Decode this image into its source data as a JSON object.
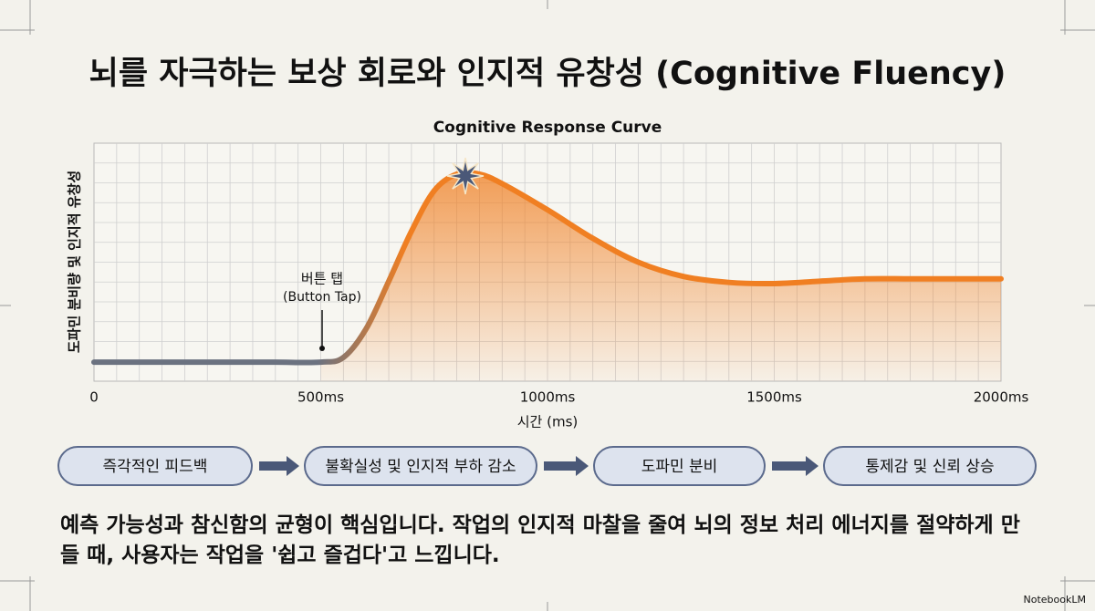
{
  "title": "뇌를 자극하는 보상 회로와 인지적 유창성 (Cognitive Fluency)",
  "chart_data": {
    "type": "line",
    "title": "Cognitive Response Curve",
    "x_label": "시간 (ms)",
    "y_label": "도파민 분비량 및 인지적 유창성",
    "x": [
      0,
      100,
      200,
      300,
      400,
      500,
      550,
      600,
      650,
      700,
      750,
      800,
      850,
      900,
      1000,
      1100,
      1200,
      1300,
      1400,
      1500,
      1600,
      1700,
      1800,
      1900,
      2000
    ],
    "series": [
      {
        "name": "Cognitive Response",
        "color": "#f07f22",
        "values": [
          0.08,
          0.08,
          0.08,
          0.08,
          0.08,
          0.08,
          0.1,
          0.22,
          0.42,
          0.63,
          0.8,
          0.87,
          0.87,
          0.83,
          0.72,
          0.6,
          0.5,
          0.44,
          0.415,
          0.41,
          0.42,
          0.43,
          0.43,
          0.43,
          0.43
        ]
      }
    ],
    "xlim": [
      0,
      2000
    ],
    "ylim": [
      0,
      1
    ],
    "xticks": [
      0,
      {
        "value": 500,
        "label": "500ms"
      },
      {
        "value": 1000,
        "label": "1000ms"
      },
      {
        "value": 1500,
        "label": "1500ms"
      },
      {
        "value": 2000,
        "label": "2000ms"
      }
    ],
    "grid": true,
    "annotations": [
      "버튼 탭",
      "(Button Tap)"
    ]
  },
  "flow": [
    "즉각적인 피드백",
    "불확실성 및 인지적 부하 감소",
    "도파민 분비",
    "통제감 및 신뢰 상승"
  ],
  "body": "예측 가능성과 참신함의 균형이 핵심입니다. 작업의 인지적 마찰을 줄여 뇌의 정보 처리 에너지를 절약하게 만들 때, 사용자는 작업을 '쉽고 즐겁다'고 느낍니다.",
  "watermark": "NotebookLM"
}
